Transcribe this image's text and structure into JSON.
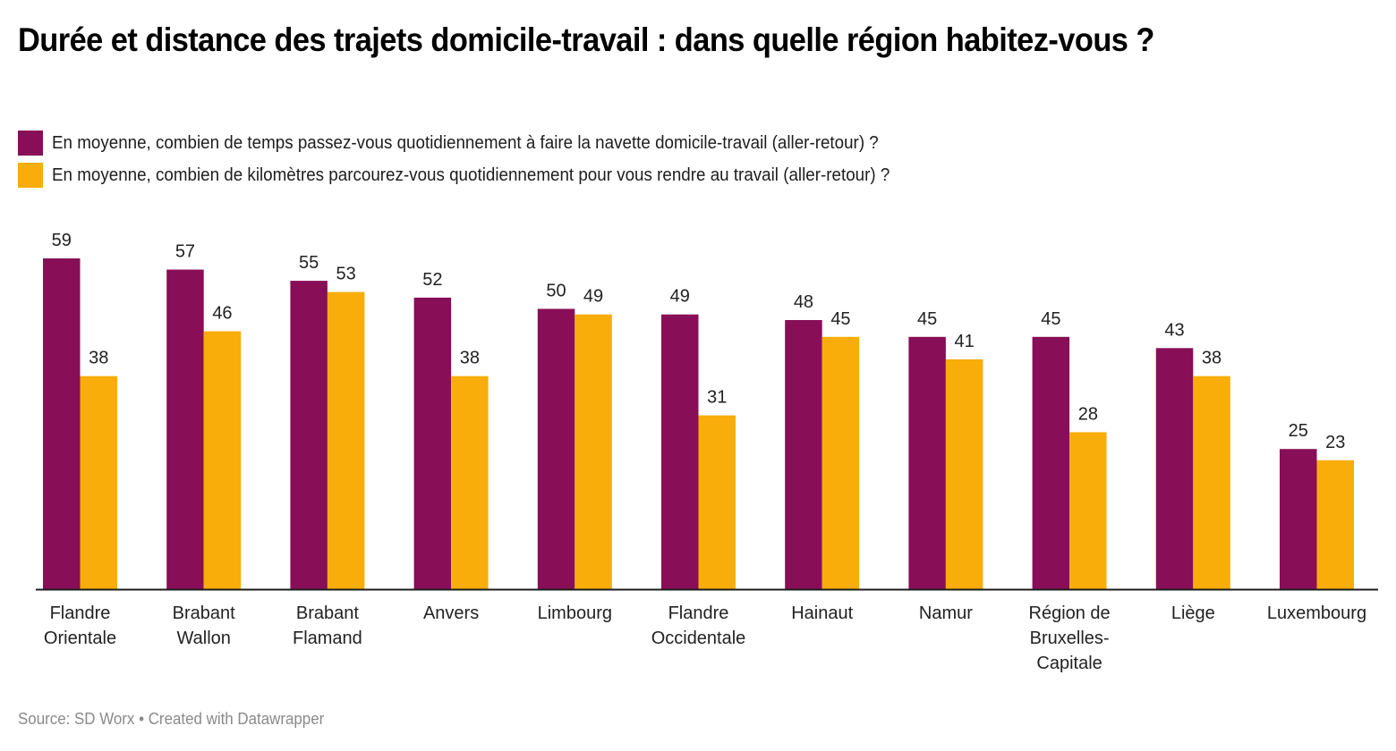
{
  "title": "Durée et distance des trajets domicile-travail : dans quelle région habitez-vous ?",
  "legend": [
    {
      "label": "En moyenne, combien de temps passez-vous quotidiennement à faire la navette domicile-travail (aller-retour) ?",
      "color": "#880e57"
    },
    {
      "label": "En moyenne, combien de kilomètres parcourez-vous quotidiennement pour vous rendre au travail (aller-retour) ?",
      "color": "#f8ad0a"
    }
  ],
  "footer": "Source: SD Worx • Created with Datawrapper",
  "chart_data": {
    "type": "bar",
    "title": "Durée et distance des trajets domicile-travail : dans quelle région habitez-vous ?",
    "xlabel": "",
    "ylabel": "",
    "ylim": [
      0,
      59
    ],
    "grid": false,
    "legend_position": "top-left",
    "categories": [
      [
        "Flandre",
        "Orientale"
      ],
      [
        "Brabant",
        "Wallon"
      ],
      [
        "Brabant",
        "Flamand"
      ],
      [
        "Anvers"
      ],
      [
        "Limbourg"
      ],
      [
        "Flandre",
        "Occidentale"
      ],
      [
        "Hainaut"
      ],
      [
        "Namur"
      ],
      [
        "Région de",
        "Bruxelles-",
        "Capitale"
      ],
      [
        "Liège"
      ],
      [
        "Luxembourg"
      ]
    ],
    "series": [
      {
        "name": "En moyenne, combien de temps passez-vous quotidiennement à faire la navette domicile-travail (aller-retour) ?",
        "color": "#880e57",
        "values": [
          59,
          57,
          55,
          52,
          50,
          49,
          48,
          45,
          45,
          43,
          25
        ]
      },
      {
        "name": "En moyenne, combien de kilomètres parcourez-vous quotidiennement pour vous rendre au travail (aller-retour) ?",
        "color": "#f8ad0a",
        "values": [
          38,
          46,
          53,
          38,
          49,
          31,
          45,
          41,
          28,
          38,
          23
        ]
      }
    ]
  }
}
